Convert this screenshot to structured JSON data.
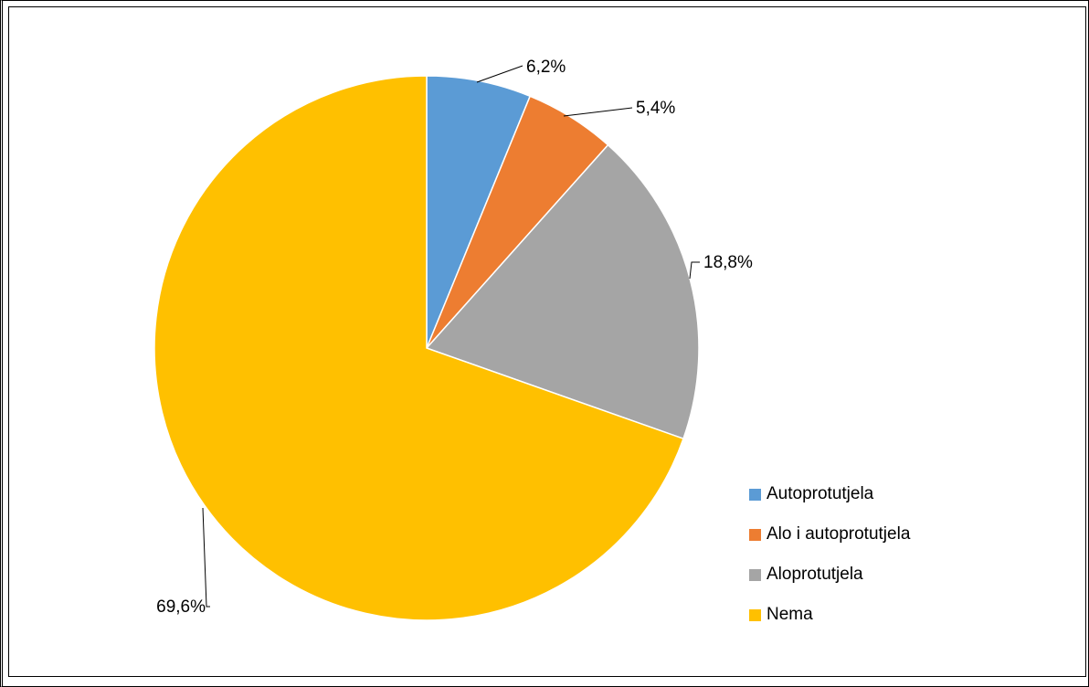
{
  "chart_data": {
    "type": "pie",
    "title": "",
    "categories": [
      "Autoprotutjela",
      "Alo i autoprotutjela",
      "Aloprotutjela",
      "Nema"
    ],
    "values": [
      6.2,
      5.4,
      18.8,
      69.6
    ],
    "labels": [
      "6,2%",
      "5,4%",
      "18,8%",
      "69,6%"
    ],
    "colors": [
      "#5B9BD5",
      "#ED7D31",
      "#A5A5A5",
      "#FFC000"
    ],
    "start_angle": "12 o'clock",
    "direction": "clockwise",
    "legend_position": "bottom-right"
  }
}
